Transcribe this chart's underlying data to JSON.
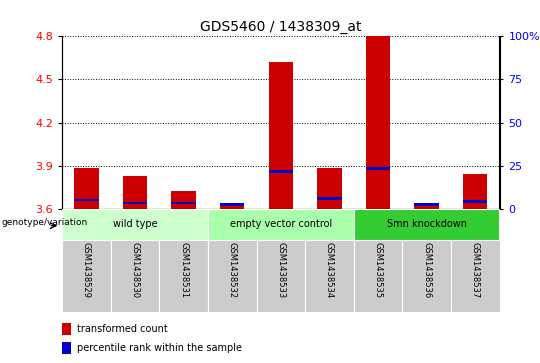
{
  "title": "GDS5460 / 1438309_at",
  "samples": [
    "GSM1438529",
    "GSM1438530",
    "GSM1438531",
    "GSM1438532",
    "GSM1438533",
    "GSM1438534",
    "GSM1438535",
    "GSM1438536",
    "GSM1438537"
  ],
  "red_values": [
    3.88,
    3.83,
    3.72,
    3.63,
    4.62,
    3.88,
    4.8,
    3.62,
    3.84
  ],
  "blue_values": [
    3.66,
    3.64,
    3.64,
    3.63,
    3.86,
    3.67,
    3.88,
    3.63,
    3.65
  ],
  "y_min": 3.6,
  "y_max": 4.8,
  "y_ticks_left": [
    3.6,
    3.9,
    4.2,
    4.5,
    4.8
  ],
  "y_ticks_right": [
    0,
    25,
    50,
    75,
    100
  ],
  "groups": [
    {
      "label": "wild type",
      "indices": [
        0,
        1,
        2
      ],
      "color": "#ccffcc"
    },
    {
      "label": "empty vector control",
      "indices": [
        3,
        4,
        5
      ],
      "color": "#aaffaa"
    },
    {
      "label": "Smn knockdown",
      "indices": [
        6,
        7,
        8
      ],
      "color": "#33cc33"
    }
  ],
  "sample_bg_color": "#cccccc",
  "genotype_label": "genotype/variation",
  "legend_red": "transformed count",
  "legend_blue": "percentile rank within the sample",
  "bar_width": 0.5,
  "red_color": "#cc0000",
  "blue_color": "#0000cc",
  "blue_bar_height": 0.018,
  "fig_width": 5.4,
  "fig_height": 3.63,
  "dpi": 100
}
